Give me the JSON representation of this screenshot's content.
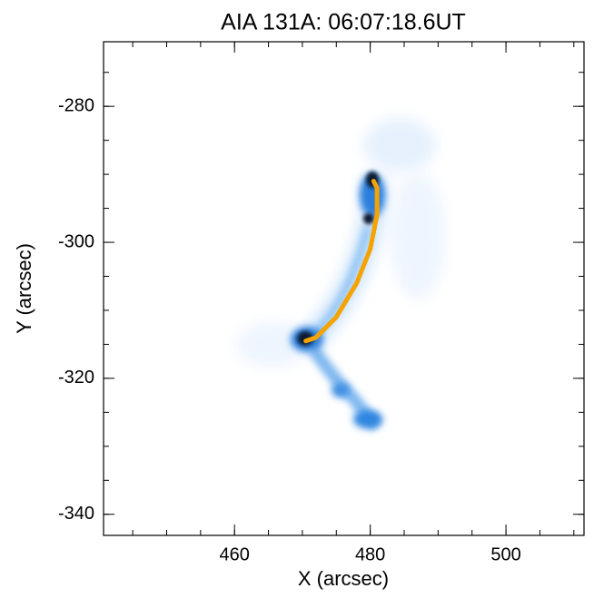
{
  "chart_data": {
    "type": "image",
    "title": "AIA 131A: 06:07:18.6UT",
    "x_label": "X (arcsec)",
    "y_label": "Y (arcsec)",
    "xlim": [
      440.7,
      511.5
    ],
    "xticks": [
      460,
      480,
      500
    ],
    "ylim": [
      -343.1,
      -270.5
    ],
    "yticks": [
      -280,
      -300,
      -320,
      -340
    ],
    "series": [
      {
        "type": "line",
        "color": "#f5a300",
        "x": [
          470.5,
          472,
          475,
          478,
          480,
          481,
          481,
          480.5
        ],
        "values": [
          -314.5,
          -314,
          -311,
          -306,
          -301,
          -296,
          -292,
          -291
        ]
      }
    ]
  }
}
